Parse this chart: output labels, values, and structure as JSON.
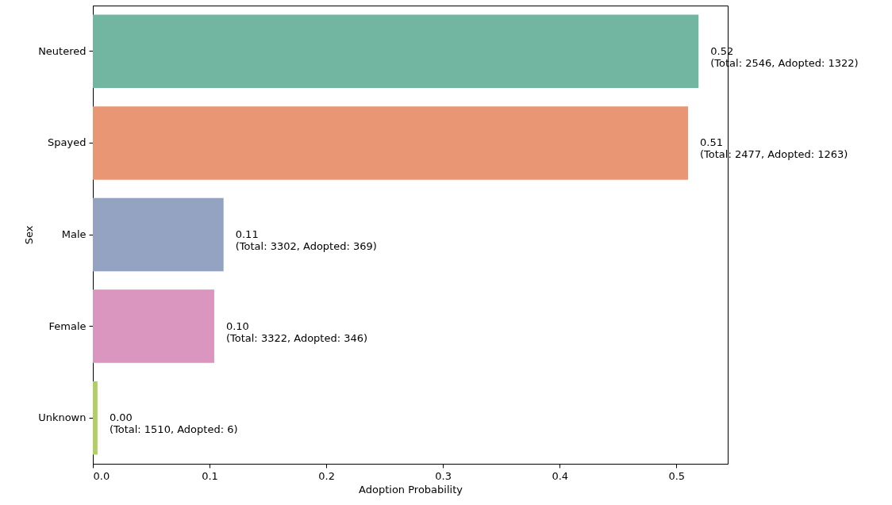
{
  "chart_data": {
    "type": "bar",
    "orientation": "horizontal",
    "xlabel": "Adoption Probability",
    "ylabel": "Sex",
    "categories": [
      "Neutered",
      "Spayed",
      "Male",
      "Female",
      "Unknown"
    ],
    "values": [
      0.519,
      0.51,
      0.112,
      0.104,
      0.004
    ],
    "colors": [
      "#72b6a1",
      "#e99675",
      "#95a3c3",
      "#db96c0",
      "#b0d066"
    ],
    "value_labels": [
      "0.52\n(Total: 2546, Adopted: 1322)",
      "0.51\n(Total: 2477, Adopted: 1263)",
      "0.11\n(Total: 3302, Adopted: 369)",
      "0.10\n(Total: 3322, Adopted: 346)",
      "0.00\n(Total: 1510, Adopted: 6)"
    ],
    "xlim": [
      0,
      0.544
    ],
    "xticks": [
      {
        "value": 0,
        "label": "0.0"
      },
      {
        "value": 0.1,
        "label": "0.1"
      },
      {
        "value": 0.2,
        "label": "0.2"
      },
      {
        "value": 0.3,
        "label": "0.3"
      },
      {
        "value": 0.4,
        "label": "0.4"
      },
      {
        "value": 0.5,
        "label": "0.5"
      }
    ],
    "grid": false
  }
}
